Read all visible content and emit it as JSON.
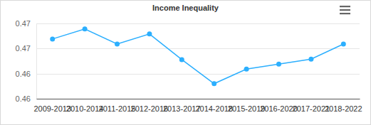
{
  "chart_data": {
    "type": "line",
    "title": "Income Inequality",
    "categories": [
      "2009-2013",
      "2010-2014",
      "2011-2015",
      "2012-2016",
      "2013-2017",
      "2014-2018",
      "2015-2019",
      "2016-2020",
      "2017-2021",
      "2018-2022"
    ],
    "values": [
      0.4669,
      0.4689,
      0.4659,
      0.4679,
      0.4628,
      0.458,
      0.4609,
      0.4619,
      0.4629,
      0.4659
    ],
    "color": "#2caffe",
    "marker": "circle",
    "ylim": [
      0.455,
      0.47
    ],
    "yticks": [
      {
        "value": 0.455,
        "label": "0.46"
      },
      0.46,
      {
        "value": 0.465,
        "label": "0.47"
      },
      0.47
    ],
    "grid": true
  }
}
